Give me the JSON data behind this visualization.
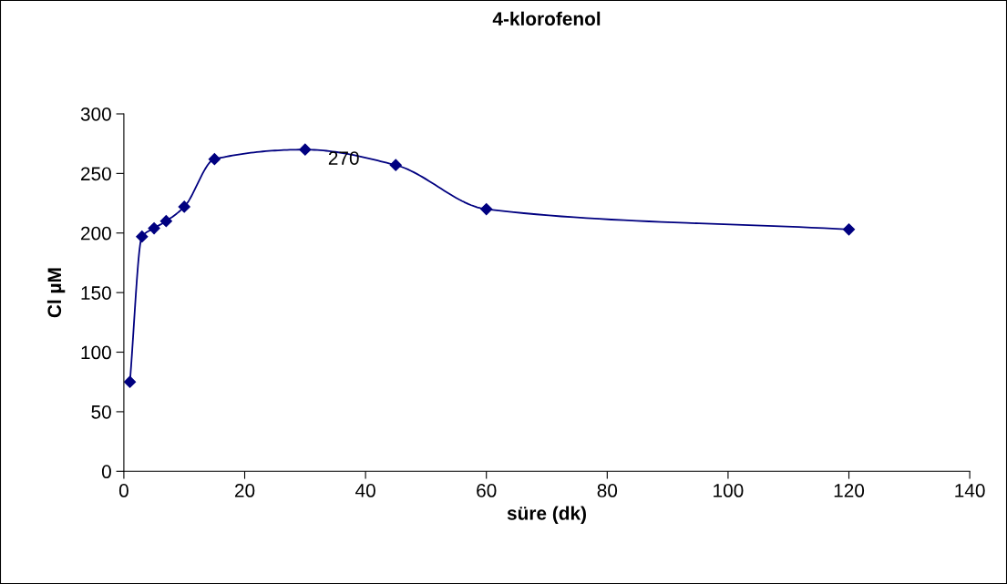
{
  "chart_data": {
    "type": "line",
    "title": "4-klorofenol",
    "xlabel": "süre (dk)",
    "ylabel": "Cl µM",
    "x": [
      1,
      3,
      5,
      7,
      10,
      15,
      30,
      45,
      60,
      120
    ],
    "series": [
      {
        "color": "#000080",
        "values": [
          75,
          197,
          204,
          210,
          222,
          262,
          270,
          257,
          220,
          203
        ]
      }
    ],
    "xlim": [
      0,
      140
    ],
    "xticks": [
      0,
      20,
      40,
      60,
      80,
      100,
      120,
      140
    ],
    "ylim": [
      0,
      300
    ],
    "yticks": [
      0,
      50,
      100,
      150,
      200,
      250,
      300
    ],
    "marker": "diamond",
    "line_style": "solid",
    "grid": false,
    "annotations": [
      {
        "text": "270",
        "x": 30,
        "y": 270
      }
    ]
  }
}
